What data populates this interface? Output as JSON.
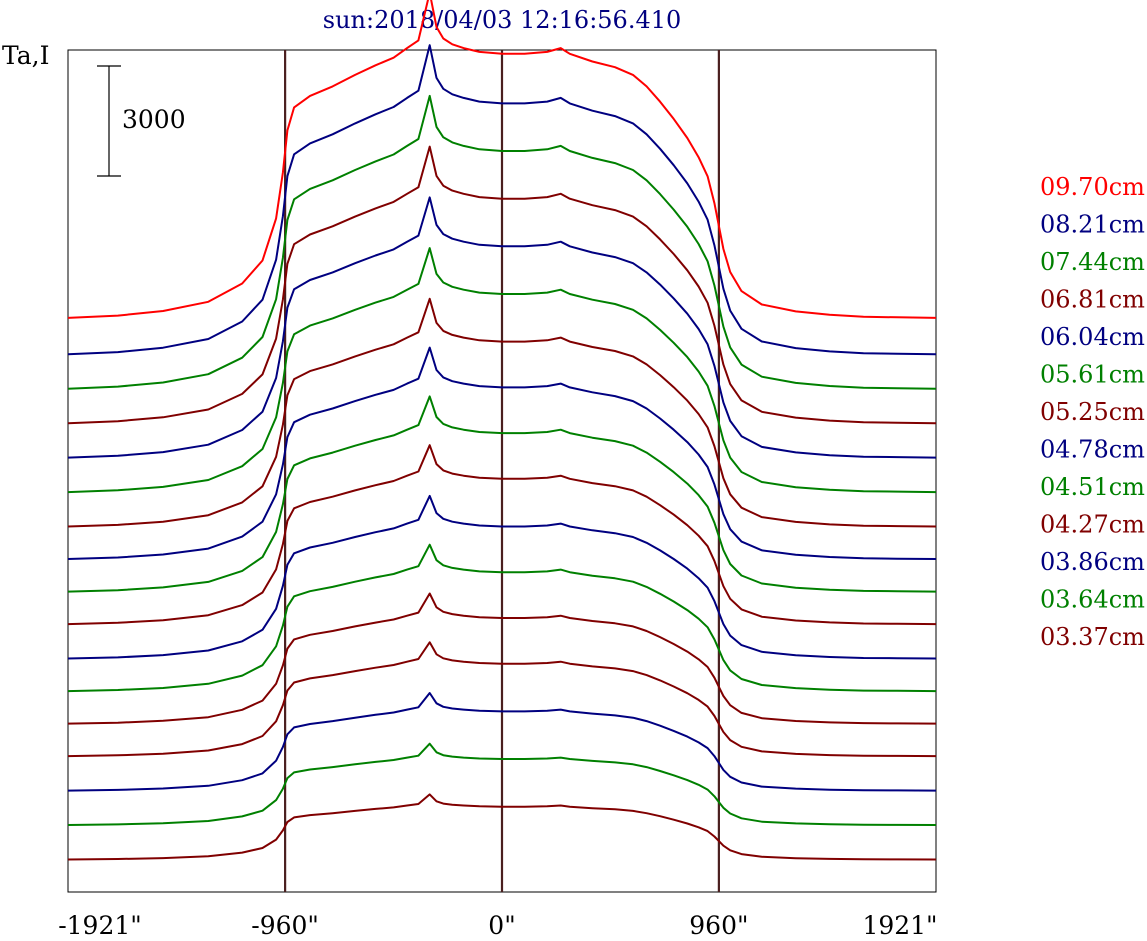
{
  "chart_data": {
    "type": "line",
    "title": "sun:2018/04/03 12:16:56.410",
    "ylabel": "Ta,I",
    "scale_bar_label": "3000",
    "xlim": [
      -1921,
      1921
    ],
    "x_ticks": [
      {
        "value": -1921,
        "label": "-1921\""
      },
      {
        "value": -960,
        "label": "-960\""
      },
      {
        "value": 0,
        "label": "0\""
      },
      {
        "value": 960,
        "label": "960\""
      },
      {
        "value": 1921,
        "label": "1921\""
      }
    ],
    "vertical_lines": [
      -960,
      0,
      960
    ],
    "profile_x": [
      -1921,
      -1700,
      -1500,
      -1300,
      -1150,
      -1060,
      -1000,
      -970,
      -950,
      -920,
      -850,
      -750,
      -650,
      -560,
      -480,
      -420,
      -370,
      -320,
      -290,
      -260,
      -220,
      -170,
      -100,
      0,
      100,
      200,
      260,
      300,
      400,
      500,
      580,
      640,
      700,
      760,
      820,
      870,
      910,
      940,
      960,
      980,
      1010,
      1060,
      1150,
      1300,
      1450,
      1600,
      1750,
      1921
    ],
    "profile_y": [
      0,
      60,
      180,
      420,
      900,
      1500,
      2600,
      3800,
      4900,
      5500,
      5800,
      6050,
      6350,
      6600,
      6800,
      7050,
      7250,
      8500,
      7600,
      7300,
      7150,
      7050,
      6950,
      6900,
      6900,
      6950,
      7050,
      6900,
      6700,
      6550,
      6350,
      6050,
      5650,
      5200,
      4700,
      4200,
      3700,
      3000,
      2400,
      1800,
      1200,
      700,
      350,
      170,
      80,
      30,
      15,
      0
    ],
    "series": [
      {
        "name": "09.70cm",
        "color": "#ff0000",
        "baseline": 0,
        "peak_scale": 1.0
      },
      {
        "name": "08.21cm",
        "color": "#000080",
        "baseline": -950,
        "peak_scale": 0.95
      },
      {
        "name": "07.44cm",
        "color": "#008000",
        "baseline": -1850,
        "peak_scale": 0.9
      },
      {
        "name": "06.81cm",
        "color": "#800000",
        "baseline": -2750,
        "peak_scale": 0.85
      },
      {
        "name": "06.04cm",
        "color": "#000080",
        "baseline": -3650,
        "peak_scale": 0.8
      },
      {
        "name": "05.61cm",
        "color": "#008000",
        "baseline": -4550,
        "peak_scale": 0.75
      },
      {
        "name": "05.25cm",
        "color": "#800000",
        "baseline": -5450,
        "peak_scale": 0.7
      },
      {
        "name": "04.78cm",
        "color": "#000080",
        "baseline": -6300,
        "peak_scale": 0.65
      },
      {
        "name": "04.51cm",
        "color": "#008000",
        "baseline": -7150,
        "peak_scale": 0.6
      },
      {
        "name": "04.27cm",
        "color": "#800000",
        "baseline": -8000,
        "peak_scale": 0.55
      },
      {
        "name": "03.86cm",
        "color": "#000080",
        "baseline": -8900,
        "peak_scale": 0.5
      },
      {
        "name": "03.64cm",
        "color": "#008000",
        "baseline": -9750,
        "peak_scale": 0.45
      },
      {
        "name": "03.37cm",
        "color": "#800000",
        "baseline": -10600,
        "peak_scale": 0.4
      },
      {
        "name": "",
        "color": "#800000",
        "baseline": -11450,
        "peak_scale": 0.35
      },
      {
        "name": "",
        "color": "#000080",
        "baseline": -12350,
        "peak_scale": 0.3
      },
      {
        "name": "",
        "color": "#008000",
        "baseline": -13250,
        "peak_scale": 0.25
      },
      {
        "name": "",
        "color": "#800000",
        "baseline": -14150,
        "peak_scale": 0.2
      }
    ],
    "ylim": [
      -15000,
      7000
    ],
    "grid": false,
    "legend_position": "right",
    "colors": {
      "axis": "#000000",
      "vertical_line": "#4a1f1f",
      "title": "#000080"
    }
  }
}
